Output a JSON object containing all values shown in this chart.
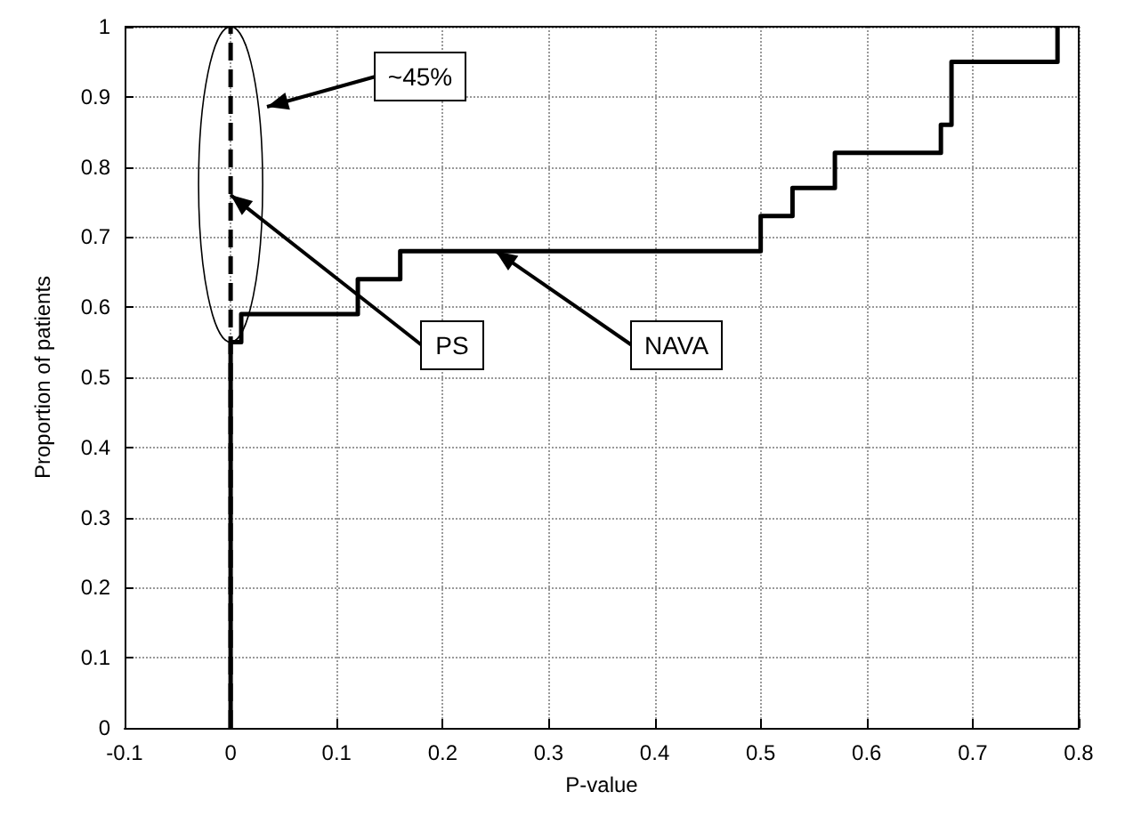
{
  "chart_data": {
    "type": "step",
    "xlabel": "P-value",
    "ylabel": "Proportion of patients",
    "xlim": [
      -0.1,
      0.8
    ],
    "xticks": [
      -0.1,
      0,
      0.1,
      0.2,
      0.3,
      0.4,
      0.5,
      0.6,
      0.7,
      0.8
    ],
    "ylim": [
      0,
      1
    ],
    "yticks": [
      0,
      0.1,
      0.2,
      0.3,
      0.4,
      0.5,
      0.6,
      0.7,
      0.8,
      0.9,
      1
    ],
    "grid": true,
    "marker": "none",
    "series": [
      {
        "color": "#000000",
        "line_style": "solid",
        "x": [
          0,
          0,
          0.01,
          0.12,
          0.16,
          0.5,
          0.53,
          0.57,
          0.67,
          0.68,
          0.68,
          0.78
        ],
        "values": [
          0,
          0.55,
          0.59,
          0.64,
          0.68,
          0.73,
          0.77,
          0.82,
          0.86,
          0.91,
          0.95,
          1
        ]
      },
      {
        "color": "#000000",
        "line_style": "dashed",
        "x": [
          0,
          0
        ],
        "values": [
          0,
          1
        ]
      }
    ],
    "annotations": [
      "~45%",
      {
        "text": "PS",
        "x": 0,
        "y": 0.76
      },
      {
        "text": "NAVA",
        "x": 0.25,
        "y": 0.68
      }
    ]
  }
}
